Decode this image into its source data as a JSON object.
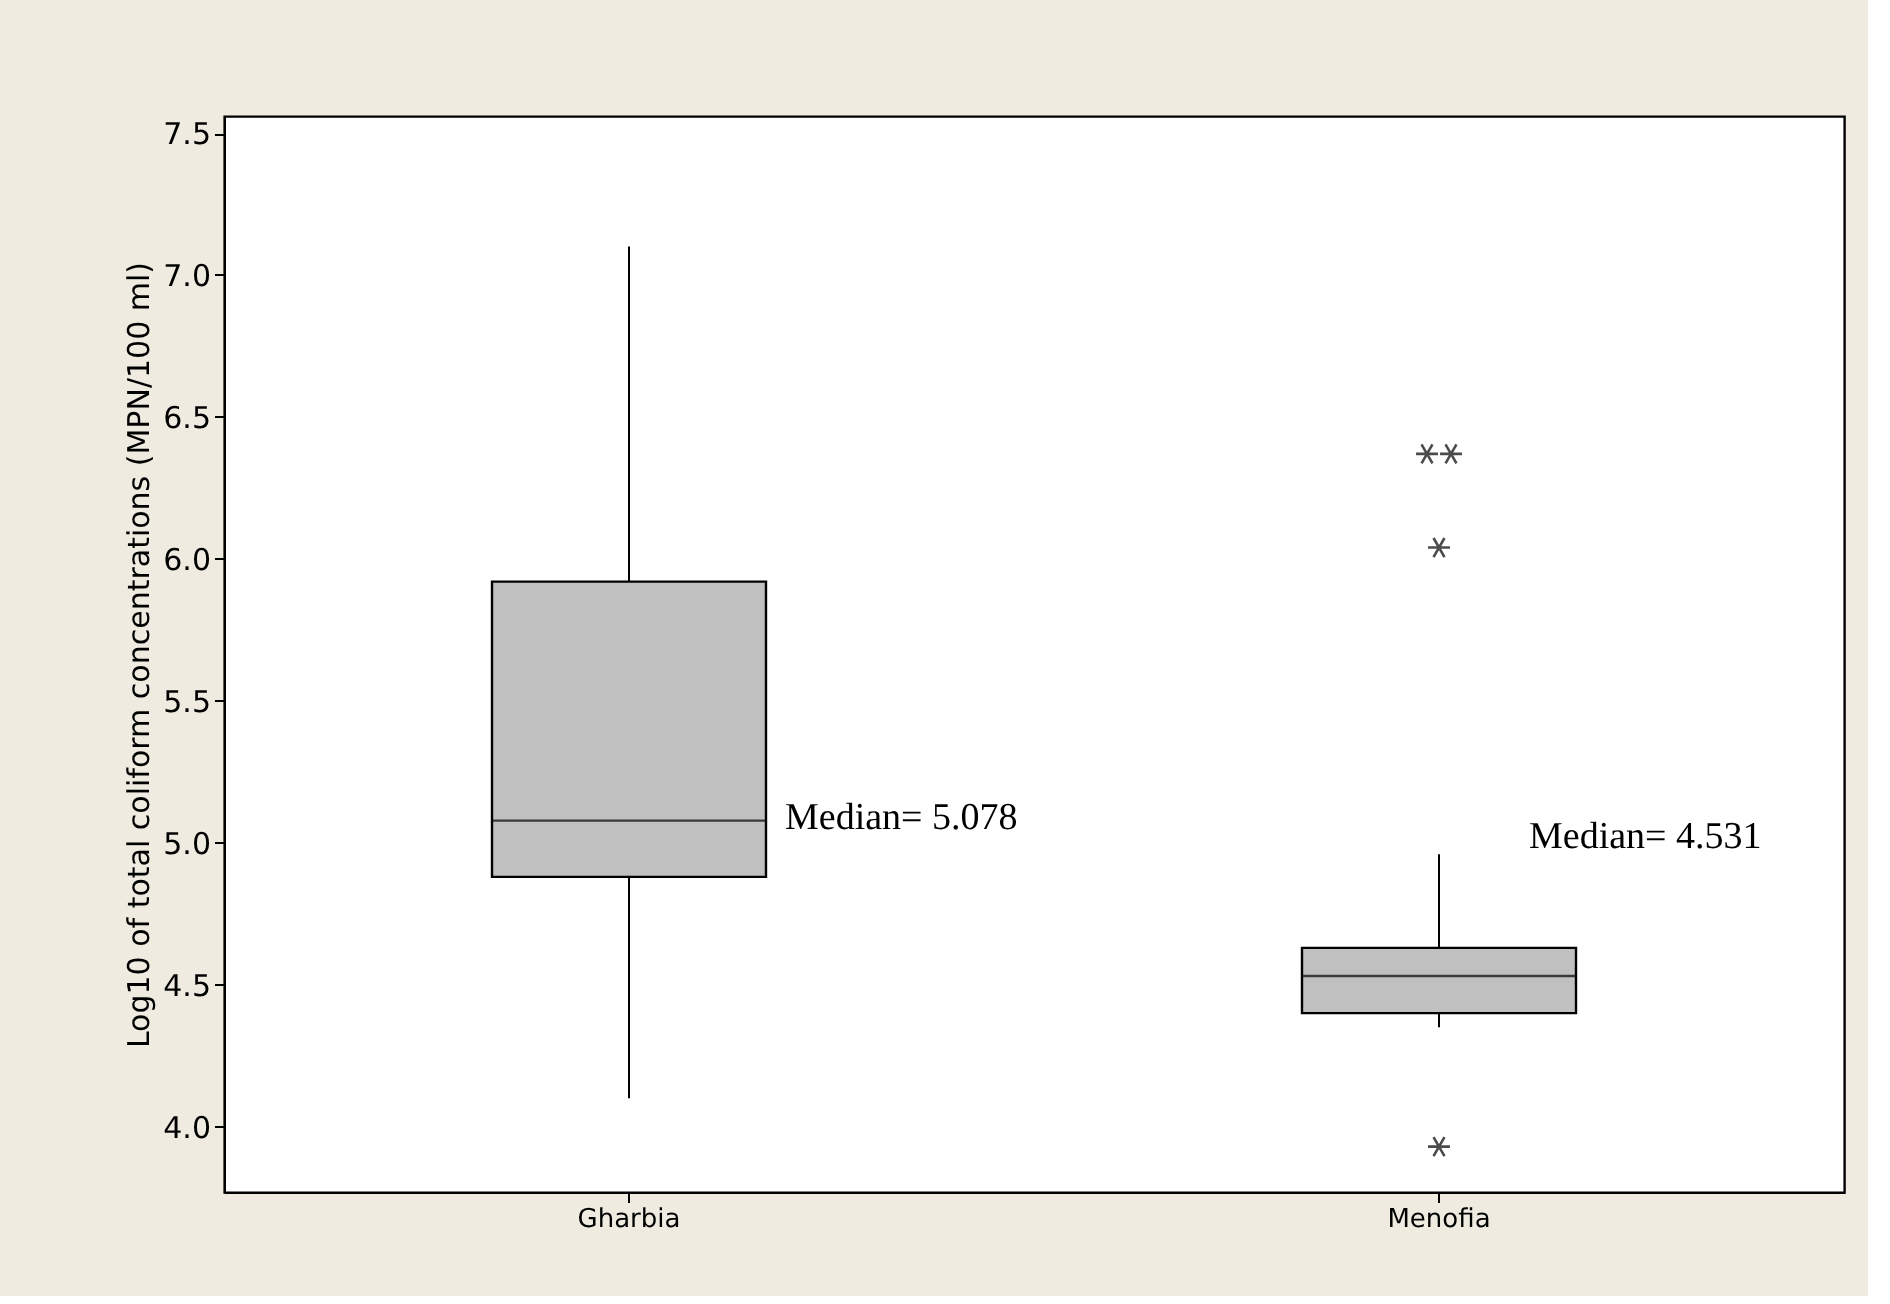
{
  "chart_data": {
    "type": "box",
    "ylabel": "Log10 of total coliform concentrations (MPN/100 ml)",
    "categories": [
      "Gharbia",
      "Menofia"
    ],
    "boxes": [
      {
        "low": 4.1,
        "q1": 4.88,
        "median": 5.078,
        "q3": 5.92,
        "high": 7.1
      },
      {
        "low": 4.35,
        "q1": 4.4,
        "median": 4.531,
        "q3": 4.63,
        "high": 4.96,
        "outliers": [
          6.37,
          6.37,
          6.04,
          3.93
        ]
      }
    ],
    "color": "#c0c0c0",
    "ylim": [
      3.77,
      7.56
    ],
    "yticks": [
      {
        "value": 4,
        "label": "4.0"
      },
      4.5,
      {
        "value": 5,
        "label": "5.0"
      },
      5.5,
      {
        "value": 6,
        "label": "6.0"
      },
      6.5,
      {
        "value": 7,
        "label": "7.0"
      },
      7.5
    ],
    "annotations": [
      "Median= 5.078",
      "Median= 4.531"
    ],
    "grid": false
  }
}
